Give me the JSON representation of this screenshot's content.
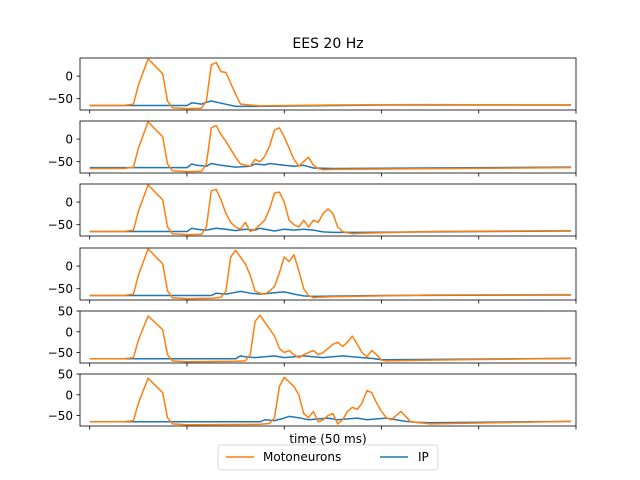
{
  "chart_data": {
    "type": "line",
    "title": "EES 20 Hz",
    "xlabel": "time (50 ms)",
    "ylabel": "",
    "xlim": [
      -2,
      100
    ],
    "x_ticks_shown": false,
    "colors": {
      "Motoneurons": "#ff7f0e",
      "IP": "#1f77b4"
    },
    "legend": {
      "position": "bottom-center",
      "entries": [
        "Motoneurons",
        "IP"
      ]
    },
    "panels": [
      {
        "ylim": [
          -75,
          40
        ],
        "yticks": [
          -50,
          0
        ],
        "yticklabels": [
          "−50",
          "0"
        ],
        "series": [
          {
            "name": "Motoneurons",
            "x": [
              0,
              7,
              9,
              10,
              12,
              15,
              16,
              17,
              20,
              23,
              24,
              25,
              26,
              27,
              28,
              30,
              31,
              35,
              50,
              70,
              99
            ],
            "y": [
              -65,
              -65,
              -62,
              -20,
              38,
              5,
              -55,
              -70,
              -72,
              -71,
              -55,
              25,
              30,
              10,
              8,
              -40,
              -62,
              -66,
              -64,
              -63,
              -64
            ]
          },
          {
            "name": "IP",
            "x": [
              0,
              20,
              21,
              23,
              24,
              25,
              27,
              30,
              35,
              60,
              99
            ],
            "y": [
              -65,
              -65,
              -59,
              -62,
              -58,
              -55,
              -60,
              -67,
              -67,
              -64,
              -64
            ]
          }
        ]
      },
      {
        "ylim": [
          -75,
          40
        ],
        "yticks": [
          -50,
          0
        ],
        "yticklabels": [
          "−50",
          "0"
        ],
        "series": [
          {
            "name": "Motoneurons",
            "x": [
              0,
              7,
              9,
              10,
              12,
              15,
              16,
              17,
              20,
              23,
              24,
              25,
              26,
              27,
              28,
              30,
              31,
              33,
              34,
              35,
              36,
              37,
              38,
              39,
              40,
              41,
              42,
              43,
              44,
              45,
              46,
              47,
              48,
              50,
              99
            ],
            "y": [
              -65,
              -65,
              -62,
              -20,
              38,
              5,
              -55,
              -70,
              -72,
              -71,
              -55,
              25,
              30,
              10,
              -5,
              -40,
              -55,
              -60,
              -45,
              -50,
              -38,
              -15,
              20,
              25,
              5,
              -20,
              -45,
              -60,
              -50,
              -40,
              -58,
              -65,
              -68,
              -67,
              -63
            ]
          },
          {
            "name": "IP",
            "x": [
              0,
              20,
              21,
              22,
              24,
              25,
              27,
              30,
              33,
              34,
              36,
              37,
              40,
              42,
              44,
              46,
              50,
              99
            ],
            "y": [
              -63,
              -63,
              -55,
              -58,
              -60,
              -54,
              -58,
              -62,
              -60,
              -55,
              -57,
              -54,
              -58,
              -60,
              -58,
              -64,
              -65,
              -62
            ]
          }
        ]
      },
      {
        "ylim": [
          -75,
          40
        ],
        "yticks": [
          -50,
          0
        ],
        "yticklabels": [
          "−50",
          "0"
        ],
        "series": [
          {
            "name": "Motoneurons",
            "x": [
              0,
              7,
              9,
              10,
              12,
              15,
              16,
              17,
              20,
              23,
              24,
              25,
              26,
              27,
              28,
              29,
              30,
              31,
              32,
              33,
              34,
              35,
              36,
              37,
              38,
              39,
              40,
              41,
              42,
              43,
              44,
              45,
              46,
              47,
              48,
              49,
              50,
              51,
              52,
              53,
              54,
              56,
              60,
              70,
              99
            ],
            "y": [
              -65,
              -65,
              -62,
              -20,
              38,
              5,
              -55,
              -70,
              -72,
              -71,
              -55,
              25,
              28,
              5,
              -25,
              -45,
              -55,
              -60,
              -45,
              -65,
              -60,
              -50,
              -40,
              -15,
              20,
              22,
              0,
              -40,
              -50,
              -55,
              -40,
              -55,
              -40,
              -45,
              -25,
              -15,
              -25,
              -55,
              -65,
              -68,
              -70,
              -69,
              -68,
              -65,
              -63
            ]
          },
          {
            "name": "IP",
            "x": [
              0,
              20,
              21,
              22,
              24,
              26,
              28,
              30,
              32,
              34,
              35,
              36,
              38,
              40,
              42,
              44,
              46,
              48,
              50,
              55,
              70,
              99
            ],
            "y": [
              -65,
              -65,
              -58,
              -60,
              -62,
              -58,
              -60,
              -63,
              -60,
              -62,
              -58,
              -60,
              -64,
              -60,
              -62,
              -60,
              -62,
              -66,
              -67,
              -67,
              -66,
              -64
            ]
          }
        ]
      },
      {
        "ylim": [
          -75,
          40
        ],
        "yticks": [
          -50,
          0
        ],
        "yticklabels": [
          "−50",
          "0"
        ],
        "series": [
          {
            "name": "Motoneurons",
            "x": [
              0,
              7,
              9,
              10,
              12,
              15,
              16,
              17,
              20,
              25,
              27,
              28,
              29,
              30,
              32,
              33,
              34,
              35,
              36,
              37,
              38,
              39,
              40,
              41,
              42,
              43,
              44,
              45,
              46,
              47,
              50,
              70,
              99
            ],
            "y": [
              -65,
              -65,
              -62,
              -20,
              38,
              5,
              -55,
              -70,
              -72,
              -71,
              -69,
              -55,
              20,
              35,
              5,
              -20,
              -55,
              -60,
              -62,
              -55,
              -45,
              -15,
              20,
              10,
              25,
              -10,
              -50,
              -65,
              -70,
              -69,
              -68,
              -64,
              -63
            ]
          },
          {
            "name": "IP",
            "x": [
              0,
              25,
              26,
              28,
              30,
              31,
              33,
              35,
              37,
              39,
              40,
              42,
              44,
              46,
              60,
              99
            ],
            "y": [
              -65,
              -65,
              -60,
              -62,
              -58,
              -56,
              -60,
              -62,
              -60,
              -58,
              -57,
              -62,
              -66,
              -67,
              -65,
              -64
            ]
          }
        ]
      },
      {
        "ylim": [
          -75,
          50
        ],
        "yticks": [
          -50,
          0,
          50
        ],
        "yticklabels": [
          "−50",
          "0",
          "50"
        ],
        "series": [
          {
            "name": "Motoneurons",
            "x": [
              0,
              7,
              9,
              10,
              12,
              15,
              16,
              17,
              20,
              30,
              32,
              33,
              34,
              35,
              38,
              39,
              40,
              41,
              42,
              43,
              44,
              45,
              46,
              47,
              48,
              49,
              50,
              51,
              52,
              53,
              54,
              55,
              56,
              57,
              58,
              59,
              60,
              61,
              70,
              99
            ],
            "y": [
              -65,
              -65,
              -62,
              -20,
              38,
              5,
              -55,
              -70,
              -72,
              -71,
              -70,
              -55,
              25,
              40,
              -10,
              -40,
              -50,
              -45,
              -55,
              -62,
              -55,
              -50,
              -45,
              -55,
              -50,
              -40,
              -30,
              -25,
              -35,
              -25,
              -10,
              -30,
              -50,
              -60,
              -45,
              -55,
              -68,
              -70,
              -68,
              -64
            ]
          },
          {
            "name": "IP",
            "x": [
              0,
              30,
              31,
              32,
              34,
              36,
              38,
              40,
              42,
              44,
              46,
              48,
              50,
              52,
              54,
              56,
              58,
              60,
              99
            ],
            "y": [
              -65,
              -65,
              -58,
              -60,
              -62,
              -60,
              -58,
              -62,
              -60,
              -58,
              -60,
              -62,
              -60,
              -58,
              -60,
              -62,
              -64,
              -67,
              -64
            ]
          }
        ]
      },
      {
        "ylim": [
          -75,
          50
        ],
        "yticks": [
          -50,
          0,
          50
        ],
        "yticklabels": [
          "−50",
          "0",
          "50"
        ],
        "series": [
          {
            "name": "Motoneurons",
            "x": [
              0,
              7,
              9,
              10,
              12,
              15,
              16,
              17,
              20,
              35,
              37,
              38,
              39,
              40,
              42,
              43,
              44,
              45,
              46,
              47,
              48,
              49,
              50,
              51,
              52,
              53,
              54,
              55,
              56,
              57,
              58,
              59,
              60,
              61,
              62,
              63,
              64,
              66,
              70,
              99
            ],
            "y": [
              -65,
              -65,
              -62,
              -20,
              40,
              5,
              -55,
              -70,
              -72,
              -71,
              -69,
              -55,
              20,
              42,
              20,
              0,
              -45,
              -55,
              -40,
              -65,
              -60,
              -50,
              -45,
              -70,
              -60,
              -40,
              -30,
              -35,
              -20,
              10,
              5,
              -20,
              -40,
              -55,
              -60,
              -50,
              -40,
              -65,
              -70,
              -64
            ]
          },
          {
            "name": "IP",
            "x": [
              0,
              35,
              36,
              38,
              40,
              41,
              43,
              45,
              47,
              49,
              51,
              53,
              55,
              57,
              59,
              61,
              63,
              65,
              67,
              70,
              99
            ],
            "y": [
              -65,
              -65,
              -60,
              -62,
              -56,
              -52,
              -55,
              -60,
              -58,
              -56,
              -60,
              -58,
              -56,
              -60,
              -58,
              -56,
              -60,
              -64,
              -66,
              -67,
              -64
            ]
          }
        ]
      }
    ]
  }
}
